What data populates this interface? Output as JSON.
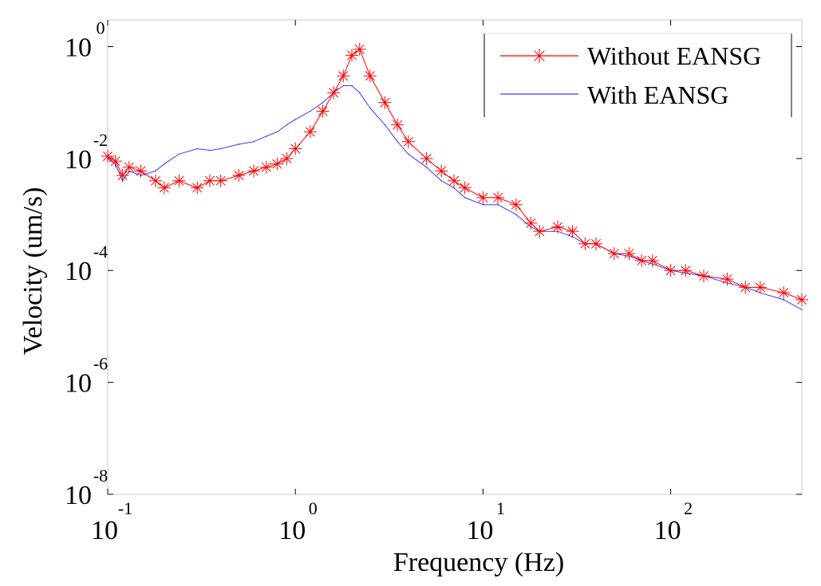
{
  "chart_data": {
    "type": "line",
    "xlabel": "Frequency (Hz)",
    "ylabel": "Velocity (um/s)",
    "xscale": "log",
    "yscale": "log",
    "xlim": [
      0.1,
      500
    ],
    "ylim": [
      1e-08,
      3
    ],
    "x_ticks": [
      {
        "value": 0.1,
        "base": "10",
        "exp": "-1"
      },
      {
        "value": 1,
        "base": "10",
        "exp": "0"
      },
      {
        "value": 10,
        "base": "10",
        "exp": "1"
      },
      {
        "value": 100,
        "base": "10",
        "exp": "2"
      }
    ],
    "y_ticks": [
      {
        "value": 1,
        "base": "10",
        "exp": "0"
      },
      {
        "value": 0.01,
        "base": "10",
        "exp": "-2"
      },
      {
        "value": 0.0001,
        "base": "10",
        "exp": "-4"
      },
      {
        "value": 1e-06,
        "base": "10",
        "exp": "-6"
      },
      {
        "value": 1e-08,
        "base": "10",
        "exp": "-8"
      }
    ],
    "legend_position": "top-right",
    "series": [
      {
        "name": "Without EANSG",
        "color": "#ff0000",
        "marker": "asterisk",
        "x": [
          0.1,
          0.11,
          0.12,
          0.13,
          0.15,
          0.18,
          0.2,
          0.24,
          0.3,
          0.35,
          0.4,
          0.5,
          0.6,
          0.7,
          0.8,
          0.9,
          1.0,
          1.2,
          1.4,
          1.6,
          1.8,
          2.0,
          2.2,
          2.5,
          3.0,
          3.5,
          4.0,
          5.0,
          6.0,
          7.0,
          8.0,
          10,
          12,
          15,
          18,
          20,
          25,
          30,
          35,
          40,
          50,
          60,
          70,
          80,
          100,
          120,
          150,
          200,
          250,
          300,
          400,
          500
        ],
        "y": [
          0.011,
          0.009,
          0.005,
          0.007,
          0.006,
          0.004,
          0.003,
          0.004,
          0.003,
          0.004,
          0.004,
          0.005,
          0.006,
          0.007,
          0.008,
          0.01,
          0.015,
          0.03,
          0.07,
          0.15,
          0.3,
          0.7,
          0.9,
          0.3,
          0.1,
          0.04,
          0.02,
          0.01,
          0.006,
          0.004,
          0.003,
          0.002,
          0.002,
          0.0015,
          0.0007,
          0.0005,
          0.0006,
          0.0005,
          0.0003,
          0.0003,
          0.0002,
          0.0002,
          0.00015,
          0.00015,
          0.0001,
          0.0001,
          8e-05,
          7e-05,
          5e-05,
          5e-05,
          4e-05,
          3e-05
        ]
      },
      {
        "name": "With EANSG",
        "color": "#3a3aff",
        "marker": "none",
        "x": [
          0.1,
          0.11,
          0.12,
          0.13,
          0.15,
          0.18,
          0.2,
          0.24,
          0.3,
          0.35,
          0.4,
          0.5,
          0.6,
          0.7,
          0.8,
          0.9,
          1.0,
          1.2,
          1.4,
          1.6,
          1.8,
          2.0,
          2.2,
          2.5,
          3.0,
          3.5,
          4.0,
          5.0,
          6.0,
          7.0,
          8.0,
          10,
          12,
          15,
          18,
          20,
          25,
          30,
          35,
          40,
          50,
          60,
          70,
          80,
          100,
          120,
          150,
          200,
          250,
          300,
          400,
          500
        ],
        "y": [
          0.01,
          0.008,
          0.004,
          0.006,
          0.005,
          0.006,
          0.008,
          0.012,
          0.015,
          0.014,
          0.015,
          0.018,
          0.02,
          0.025,
          0.03,
          0.04,
          0.05,
          0.07,
          0.1,
          0.15,
          0.2,
          0.2,
          0.15,
          0.08,
          0.04,
          0.02,
          0.012,
          0.007,
          0.004,
          0.003,
          0.002,
          0.0015,
          0.0015,
          0.001,
          0.0006,
          0.0005,
          0.0005,
          0.0004,
          0.0003,
          0.0003,
          0.0002,
          0.00018,
          0.00015,
          0.00013,
          0.0001,
          9e-05,
          8e-05,
          6e-05,
          5e-05,
          4e-05,
          3e-05,
          2e-05
        ]
      }
    ]
  }
}
